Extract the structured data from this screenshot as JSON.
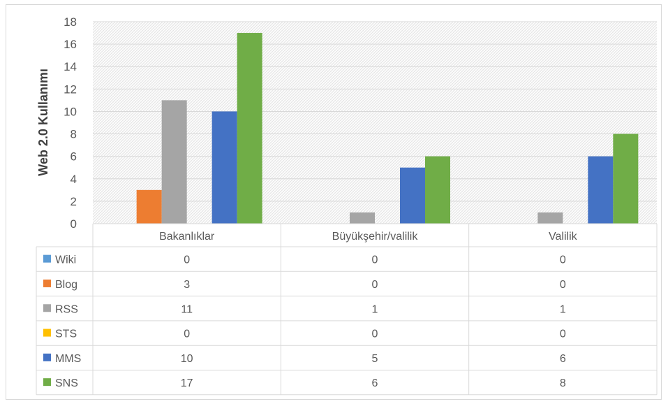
{
  "chart_data": {
    "type": "bar",
    "ylabel": "Web 2.0 Kullanımı",
    "xlabel": "",
    "title": "",
    "ylim": [
      0,
      18
    ],
    "yticks": [
      0,
      2,
      4,
      6,
      8,
      10,
      12,
      14,
      16,
      18
    ],
    "grid": true,
    "legend": "data-table",
    "categories": [
      "Bakanlıklar",
      "Büyükşehir/valilik",
      "Valilik"
    ],
    "series": [
      {
        "name": "Wiki",
        "color": "#5b9bd5",
        "values": [
          0,
          0,
          0
        ]
      },
      {
        "name": "Blog",
        "color": "#ed7d31",
        "values": [
          3,
          0,
          0
        ]
      },
      {
        "name": "RSS",
        "color": "#a5a5a5",
        "values": [
          11,
          1,
          1
        ]
      },
      {
        "name": "STS",
        "color": "#ffc000",
        "values": [
          0,
          0,
          0
        ]
      },
      {
        "name": "MMS",
        "color": "#4472c4",
        "values": [
          10,
          5,
          6
        ]
      },
      {
        "name": "SNS",
        "color": "#70ad47",
        "values": [
          17,
          6,
          8
        ]
      }
    ]
  }
}
